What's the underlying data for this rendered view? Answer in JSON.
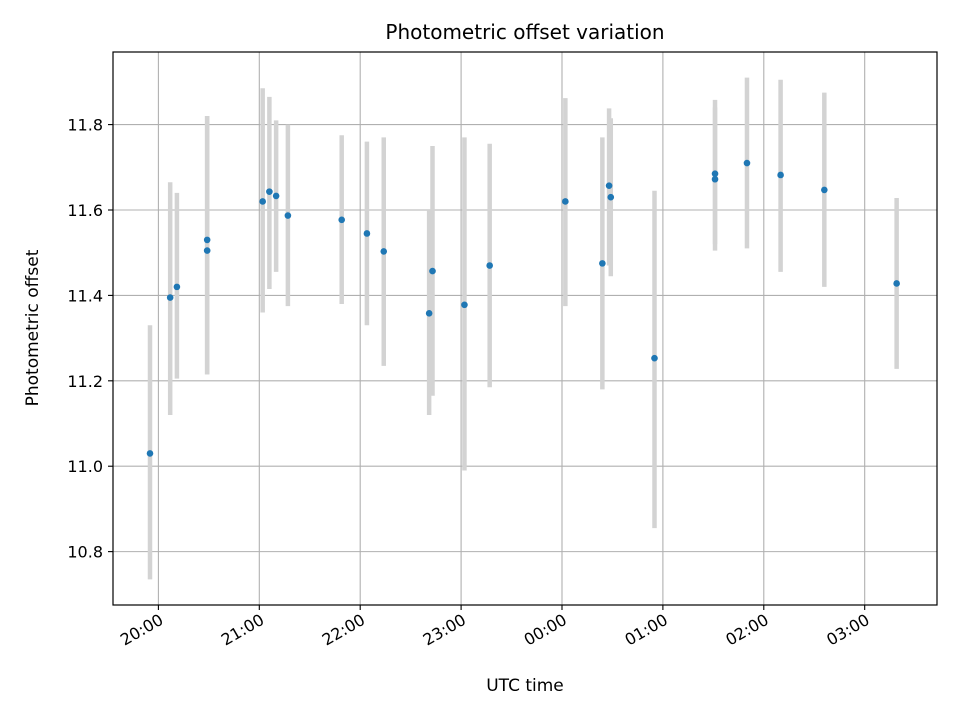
{
  "chart_data": {
    "type": "scatter",
    "title": "Photometric offset variation",
    "xlabel": "UTC time",
    "ylabel": "Photometric offset",
    "x_unit": "minutes since 20:00 UTC",
    "xlim": [
      -27,
      463
    ],
    "ylim": [
      10.675,
      11.97
    ],
    "grid": true,
    "x_ticks": [
      {
        "value": 0,
        "label": "20:00"
      },
      {
        "value": 60,
        "label": "21:00"
      },
      {
        "value": 120,
        "label": "22:00"
      },
      {
        "value": 180,
        "label": "23:00"
      },
      {
        "value": 240,
        "label": "00:00"
      },
      {
        "value": 300,
        "label": "01:00"
      },
      {
        "value": 360,
        "label": "02:00"
      },
      {
        "value": 420,
        "label": "03:00"
      }
    ],
    "y_ticks": [
      10.8,
      11.0,
      11.2,
      11.4,
      11.6,
      11.8
    ],
    "colors": {
      "point": "#1f77b4",
      "errorbar": "#d3d3d3",
      "grid": "#b0b0b0"
    },
    "points": [
      {
        "x": -5,
        "y": 11.03,
        "ylo": 10.735,
        "yhi": 11.33
      },
      {
        "x": 7,
        "y": 11.395,
        "ylo": 11.12,
        "yhi": 11.665
      },
      {
        "x": 11,
        "y": 11.42,
        "ylo": 11.205,
        "yhi": 11.64
      },
      {
        "x": 29,
        "y": 11.53,
        "ylo": 11.215,
        "yhi": 11.82
      },
      {
        "x": 29,
        "y": 11.505,
        "ylo": 11.215,
        "yhi": 11.82
      },
      {
        "x": 62,
        "y": 11.62,
        "ylo": 11.36,
        "yhi": 11.885
      },
      {
        "x": 66,
        "y": 11.643,
        "ylo": 11.415,
        "yhi": 11.865
      },
      {
        "x": 70,
        "y": 11.633,
        "ylo": 11.455,
        "yhi": 11.81
      },
      {
        "x": 77,
        "y": 11.587,
        "ylo": 11.375,
        "yhi": 11.8
      },
      {
        "x": 109,
        "y": 11.577,
        "ylo": 11.38,
        "yhi": 11.775
      },
      {
        "x": 124,
        "y": 11.545,
        "ylo": 11.33,
        "yhi": 11.76
      },
      {
        "x": 134,
        "y": 11.503,
        "ylo": 11.235,
        "yhi": 11.77
      },
      {
        "x": 161,
        "y": 11.358,
        "ylo": 11.12,
        "yhi": 11.6
      },
      {
        "x": 163,
        "y": 11.457,
        "ylo": 11.165,
        "yhi": 11.75
      },
      {
        "x": 182,
        "y": 11.378,
        "ylo": 10.99,
        "yhi": 11.77
      },
      {
        "x": 197,
        "y": 11.47,
        "ylo": 11.185,
        "yhi": 11.755
      },
      {
        "x": 242,
        "y": 11.62,
        "ylo": 11.375,
        "yhi": 11.862
      },
      {
        "x": 264,
        "y": 11.475,
        "ylo": 11.18,
        "yhi": 11.77
      },
      {
        "x": 268,
        "y": 11.657,
        "ylo": 11.47,
        "yhi": 11.838
      },
      {
        "x": 269,
        "y": 11.63,
        "ylo": 11.445,
        "yhi": 11.815
      },
      {
        "x": 295,
        "y": 11.253,
        "ylo": 10.855,
        "yhi": 11.645
      },
      {
        "x": 331,
        "y": 11.685,
        "ylo": 11.52,
        "yhi": 11.858
      },
      {
        "x": 331,
        "y": 11.672,
        "ylo": 11.505,
        "yhi": 11.84
      },
      {
        "x": 350,
        "y": 11.71,
        "ylo": 11.51,
        "yhi": 11.91
      },
      {
        "x": 370,
        "y": 11.682,
        "ylo": 11.455,
        "yhi": 11.905
      },
      {
        "x": 396,
        "y": 11.647,
        "ylo": 11.42,
        "yhi": 11.875
      },
      {
        "x": 439,
        "y": 11.428,
        "ylo": 11.228,
        "yhi": 11.628
      }
    ]
  }
}
